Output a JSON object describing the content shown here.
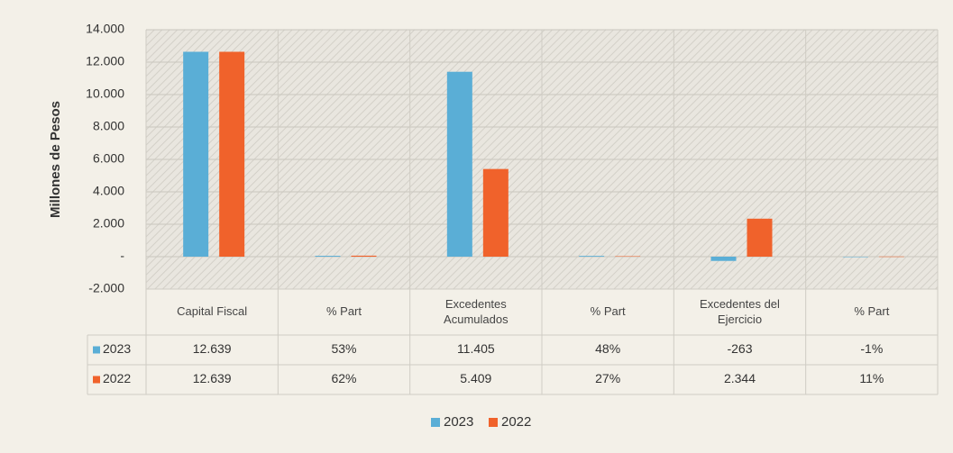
{
  "chart_data": {
    "type": "bar",
    "y_label": "Millones de Pesos",
    "categories": [
      "Capital Fiscal",
      "% Part",
      "Excedentes Acumulados",
      "% Part",
      "Excedentes del Ejercicio",
      "% Part"
    ],
    "series": [
      {
        "name": "2023",
        "color": "#5aaed6",
        "values": [
          12639,
          53,
          11405,
          48,
          -263,
          -1
        ],
        "value_labels": [
          "12.639",
          "53%",
          "11.405",
          "48%",
          "-263",
          "-1%"
        ]
      },
      {
        "name": "2022",
        "color": "#f0622b",
        "values": [
          12639,
          62,
          5409,
          27,
          2344,
          11
        ],
        "value_labels": [
          "12.639",
          "62%",
          "5.409",
          "27%",
          "2.344",
          "11%"
        ]
      }
    ],
    "ylim": [
      -2000,
      14000
    ],
    "yticks": [
      {
        "value": -2000,
        "label": "-2.000"
      },
      {
        "value": 0,
        "label": "-"
      },
      {
        "value": 2000,
        "label": "2.000"
      },
      {
        "value": 4000,
        "label": "4.000"
      },
      {
        "value": 6000,
        "label": "6.000"
      },
      {
        "value": 8000,
        "label": "8.000"
      },
      {
        "value": 10000,
        "label": "10.000"
      },
      {
        "value": 12000,
        "label": "12.000"
      },
      {
        "value": 14000,
        "label": "14.000"
      }
    ],
    "grid": true,
    "legend": "bottom"
  }
}
